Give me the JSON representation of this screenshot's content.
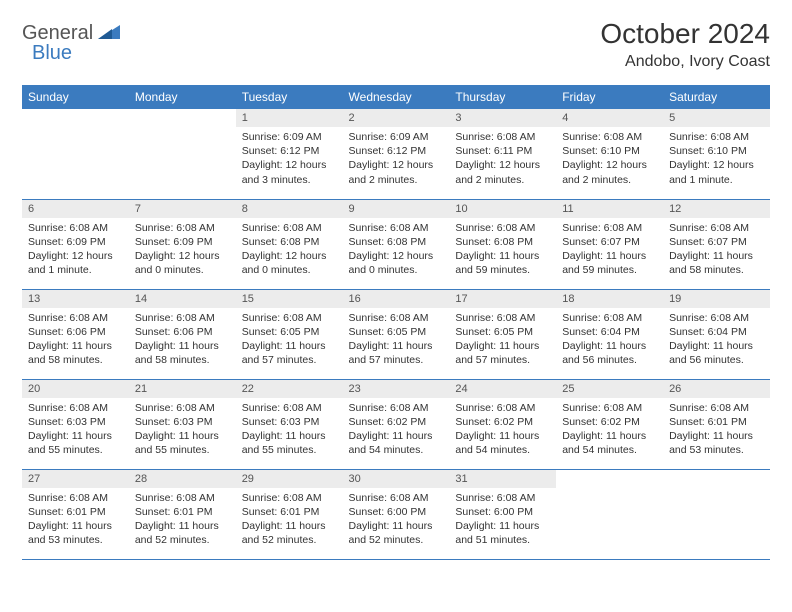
{
  "logo": {
    "general": "General",
    "blue": "Blue"
  },
  "title": "October 2024",
  "location": "Andobo, Ivory Coast",
  "colors": {
    "header_bg": "#3b7bbf",
    "header_text": "#ffffff",
    "daynum_bg": "#ececec",
    "border": "#3b7bbf",
    "text": "#333333"
  },
  "weekdays": [
    "Sunday",
    "Monday",
    "Tuesday",
    "Wednesday",
    "Thursday",
    "Friday",
    "Saturday"
  ],
  "weeks": [
    [
      null,
      null,
      {
        "num": "1",
        "sunrise": "Sunrise: 6:09 AM",
        "sunset": "Sunset: 6:12 PM",
        "daylight": "Daylight: 12 hours and 3 minutes."
      },
      {
        "num": "2",
        "sunrise": "Sunrise: 6:09 AM",
        "sunset": "Sunset: 6:12 PM",
        "daylight": "Daylight: 12 hours and 2 minutes."
      },
      {
        "num": "3",
        "sunrise": "Sunrise: 6:08 AM",
        "sunset": "Sunset: 6:11 PM",
        "daylight": "Daylight: 12 hours and 2 minutes."
      },
      {
        "num": "4",
        "sunrise": "Sunrise: 6:08 AM",
        "sunset": "Sunset: 6:10 PM",
        "daylight": "Daylight: 12 hours and 2 minutes."
      },
      {
        "num": "5",
        "sunrise": "Sunrise: 6:08 AM",
        "sunset": "Sunset: 6:10 PM",
        "daylight": "Daylight: 12 hours and 1 minute."
      }
    ],
    [
      {
        "num": "6",
        "sunrise": "Sunrise: 6:08 AM",
        "sunset": "Sunset: 6:09 PM",
        "daylight": "Daylight: 12 hours and 1 minute."
      },
      {
        "num": "7",
        "sunrise": "Sunrise: 6:08 AM",
        "sunset": "Sunset: 6:09 PM",
        "daylight": "Daylight: 12 hours and 0 minutes."
      },
      {
        "num": "8",
        "sunrise": "Sunrise: 6:08 AM",
        "sunset": "Sunset: 6:08 PM",
        "daylight": "Daylight: 12 hours and 0 minutes."
      },
      {
        "num": "9",
        "sunrise": "Sunrise: 6:08 AM",
        "sunset": "Sunset: 6:08 PM",
        "daylight": "Daylight: 12 hours and 0 minutes."
      },
      {
        "num": "10",
        "sunrise": "Sunrise: 6:08 AM",
        "sunset": "Sunset: 6:08 PM",
        "daylight": "Daylight: 11 hours and 59 minutes."
      },
      {
        "num": "11",
        "sunrise": "Sunrise: 6:08 AM",
        "sunset": "Sunset: 6:07 PM",
        "daylight": "Daylight: 11 hours and 59 minutes."
      },
      {
        "num": "12",
        "sunrise": "Sunrise: 6:08 AM",
        "sunset": "Sunset: 6:07 PM",
        "daylight": "Daylight: 11 hours and 58 minutes."
      }
    ],
    [
      {
        "num": "13",
        "sunrise": "Sunrise: 6:08 AM",
        "sunset": "Sunset: 6:06 PM",
        "daylight": "Daylight: 11 hours and 58 minutes."
      },
      {
        "num": "14",
        "sunrise": "Sunrise: 6:08 AM",
        "sunset": "Sunset: 6:06 PM",
        "daylight": "Daylight: 11 hours and 58 minutes."
      },
      {
        "num": "15",
        "sunrise": "Sunrise: 6:08 AM",
        "sunset": "Sunset: 6:05 PM",
        "daylight": "Daylight: 11 hours and 57 minutes."
      },
      {
        "num": "16",
        "sunrise": "Sunrise: 6:08 AM",
        "sunset": "Sunset: 6:05 PM",
        "daylight": "Daylight: 11 hours and 57 minutes."
      },
      {
        "num": "17",
        "sunrise": "Sunrise: 6:08 AM",
        "sunset": "Sunset: 6:05 PM",
        "daylight": "Daylight: 11 hours and 57 minutes."
      },
      {
        "num": "18",
        "sunrise": "Sunrise: 6:08 AM",
        "sunset": "Sunset: 6:04 PM",
        "daylight": "Daylight: 11 hours and 56 minutes."
      },
      {
        "num": "19",
        "sunrise": "Sunrise: 6:08 AM",
        "sunset": "Sunset: 6:04 PM",
        "daylight": "Daylight: 11 hours and 56 minutes."
      }
    ],
    [
      {
        "num": "20",
        "sunrise": "Sunrise: 6:08 AM",
        "sunset": "Sunset: 6:03 PM",
        "daylight": "Daylight: 11 hours and 55 minutes."
      },
      {
        "num": "21",
        "sunrise": "Sunrise: 6:08 AM",
        "sunset": "Sunset: 6:03 PM",
        "daylight": "Daylight: 11 hours and 55 minutes."
      },
      {
        "num": "22",
        "sunrise": "Sunrise: 6:08 AM",
        "sunset": "Sunset: 6:03 PM",
        "daylight": "Daylight: 11 hours and 55 minutes."
      },
      {
        "num": "23",
        "sunrise": "Sunrise: 6:08 AM",
        "sunset": "Sunset: 6:02 PM",
        "daylight": "Daylight: 11 hours and 54 minutes."
      },
      {
        "num": "24",
        "sunrise": "Sunrise: 6:08 AM",
        "sunset": "Sunset: 6:02 PM",
        "daylight": "Daylight: 11 hours and 54 minutes."
      },
      {
        "num": "25",
        "sunrise": "Sunrise: 6:08 AM",
        "sunset": "Sunset: 6:02 PM",
        "daylight": "Daylight: 11 hours and 54 minutes."
      },
      {
        "num": "26",
        "sunrise": "Sunrise: 6:08 AM",
        "sunset": "Sunset: 6:01 PM",
        "daylight": "Daylight: 11 hours and 53 minutes."
      }
    ],
    [
      {
        "num": "27",
        "sunrise": "Sunrise: 6:08 AM",
        "sunset": "Sunset: 6:01 PM",
        "daylight": "Daylight: 11 hours and 53 minutes."
      },
      {
        "num": "28",
        "sunrise": "Sunrise: 6:08 AM",
        "sunset": "Sunset: 6:01 PM",
        "daylight": "Daylight: 11 hours and 52 minutes."
      },
      {
        "num": "29",
        "sunrise": "Sunrise: 6:08 AM",
        "sunset": "Sunset: 6:01 PM",
        "daylight": "Daylight: 11 hours and 52 minutes."
      },
      {
        "num": "30",
        "sunrise": "Sunrise: 6:08 AM",
        "sunset": "Sunset: 6:00 PM",
        "daylight": "Daylight: 11 hours and 52 minutes."
      },
      {
        "num": "31",
        "sunrise": "Sunrise: 6:08 AM",
        "sunset": "Sunset: 6:00 PM",
        "daylight": "Daylight: 11 hours and 51 minutes."
      },
      null,
      null
    ]
  ]
}
